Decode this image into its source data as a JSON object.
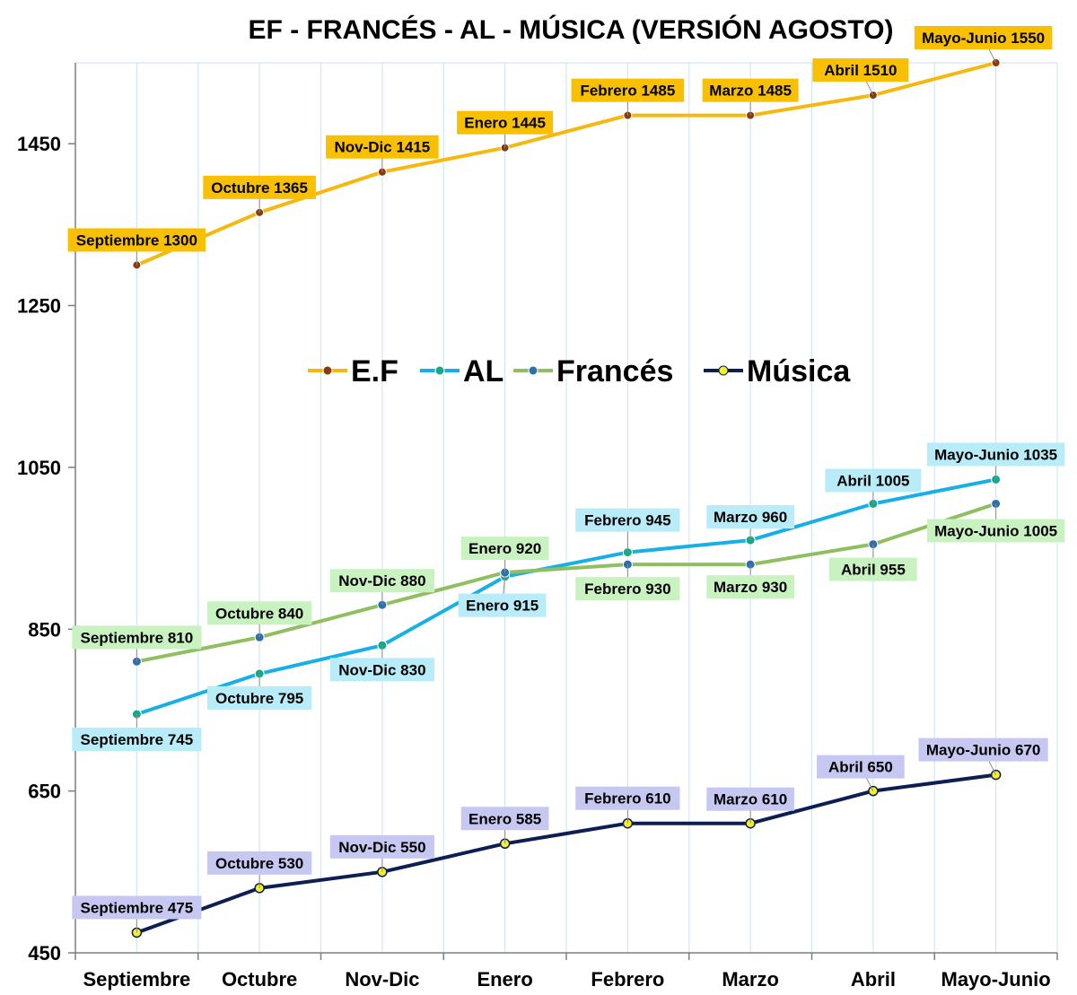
{
  "chart_data": {
    "type": "line",
    "title": "EF - FRANCÉS - AL - MÚSICA (VERSIÓN AGOSTO)",
    "categories": [
      "Septiembre",
      "Octubre",
      "Nov-Dic",
      "Enero",
      "Febrero",
      "Marzo",
      "Abril",
      "Mayo-Junio"
    ],
    "ylim": [
      450,
      1550
    ],
    "yticks": [
      450,
      650,
      850,
      1050,
      1250,
      1450
    ],
    "grid": true,
    "legend_position": "middle",
    "series": [
      {
        "name": "E.F",
        "line_color": "#f5b80f",
        "marker_color": "#8b3a10",
        "label_bg": "#f8c000",
        "values": [
          1300,
          1365,
          1415,
          1445,
          1485,
          1485,
          1510,
          1550
        ],
        "labels": [
          "Septiembre 1300",
          "Octubre 1365",
          "Nov-Dic 1415",
          "Enero 1445",
          "Febrero 1485",
          "Marzo 1485",
          "Abril 1510",
          "Mayo-Junio 1550"
        ]
      },
      {
        "name": "AL",
        "line_color": "#17b0e6",
        "marker_color": "#17a88a",
        "label_bg": "#b8ecf8",
        "values": [
          745,
          795,
          830,
          915,
          945,
          960,
          1005,
          1035
        ],
        "labels": [
          "Septiembre 745",
          "Octubre 795",
          "Nov-Dic 830",
          "Enero 915",
          "Febrero 945",
          "Marzo 960",
          "Abril 1005",
          "Mayo-Junio 1035"
        ]
      },
      {
        "name": "Francés",
        "line_color": "#8fbf60",
        "marker_color": "#2f6fb0",
        "label_bg": "#c8f2c0",
        "values": [
          810,
          840,
          880,
          920,
          930,
          930,
          955,
          1005
        ],
        "labels": [
          "Septiembre 810",
          "Octubre 840",
          "Nov-Dic 880",
          "Enero 920",
          "Febrero 930",
          "Marzo 930",
          "Abril 955",
          "Mayo-Junio 1005"
        ]
      },
      {
        "name": "Música",
        "line_color": "#0d1f52",
        "marker_color": "#f5ef2a",
        "label_bg": "#c6c8f2",
        "values": [
          475,
          530,
          550,
          585,
          610,
          610,
          650,
          670
        ],
        "labels": [
          "Septiembre 475",
          "Octubre 530",
          "Nov-Dic 550",
          "Enero 585",
          "Febrero 610",
          "Marzo 610",
          "Abril 650",
          "Mayo-Junio 670"
        ]
      }
    ]
  }
}
